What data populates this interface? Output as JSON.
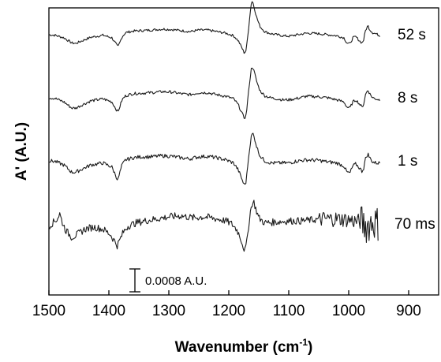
{
  "chart_data": {
    "type": "line",
    "title": "",
    "xlabel_main": "Wavenumber (cm",
    "xlabel_sup": "-1",
    "xlabel_close": ")",
    "ylabel": "A' (A.U.)",
    "xlim": [
      1500,
      850
    ],
    "x_reversed": true,
    "y_ticks_shown": false,
    "xticks": [
      "1500",
      "1400",
      "1300",
      "1200",
      "1100",
      "1000",
      "900"
    ],
    "xtick_values": [
      1500,
      1400,
      1300,
      1200,
      1100,
      1000,
      900
    ],
    "scale_bar": {
      "label": "0.0008 A.U.",
      "value": 0.0008
    },
    "series": [
      {
        "name": "52 s",
        "offset": 3.0,
        "noise": 0.012,
        "x": [
          1500,
          1490,
          1475,
          1462,
          1455,
          1445,
          1430,
          1410,
          1395,
          1388,
          1385,
          1382,
          1378,
          1372,
          1360,
          1345,
          1330,
          1310,
          1295,
          1280,
          1265,
          1250,
          1235,
          1220,
          1205,
          1192,
          1184,
          1178,
          1174,
          1171,
          1168,
          1165,
          1162,
          1160,
          1157,
          1153,
          1148,
          1140,
          1130,
          1120,
          1110,
          1100,
          1085,
          1070,
          1050,
          1035,
          1020,
          1008,
          1003,
          998,
          993,
          988,
          982,
          978,
          975,
          972,
          968,
          965,
          960,
          955,
          948
        ],
        "y": [
          0.0,
          -0.005,
          -0.03,
          -0.08,
          -0.085,
          -0.06,
          -0.025,
          -0.005,
          -0.03,
          -0.09,
          -0.12,
          -0.08,
          -0.02,
          0.02,
          0.035,
          0.04,
          0.045,
          0.055,
          0.05,
          0.04,
          0.03,
          0.045,
          0.045,
          0.03,
          0.015,
          -0.01,
          -0.06,
          -0.13,
          -0.18,
          -0.15,
          0.0,
          0.18,
          0.33,
          0.32,
          0.25,
          0.16,
          0.08,
          0.03,
          0.01,
          0.0,
          -0.01,
          -0.015,
          0.0,
          0.015,
          0.01,
          0.0,
          -0.01,
          -0.03,
          -0.08,
          -0.09,
          -0.03,
          -0.02,
          -0.06,
          -0.08,
          -0.05,
          0.04,
          0.09,
          0.05,
          0.02,
          0.01,
          -0.01
        ]
      },
      {
        "name": "8 s",
        "offset": 2.0,
        "noise": 0.014,
        "x": [
          1500,
          1490,
          1475,
          1462,
          1455,
          1445,
          1430,
          1410,
          1395,
          1388,
          1385,
          1382,
          1378,
          1372,
          1360,
          1345,
          1330,
          1310,
          1295,
          1280,
          1265,
          1250,
          1235,
          1220,
          1205,
          1192,
          1184,
          1178,
          1174,
          1171,
          1168,
          1165,
          1162,
          1160,
          1157,
          1153,
          1148,
          1140,
          1130,
          1120,
          1110,
          1100,
          1085,
          1070,
          1050,
          1035,
          1020,
          1008,
          1003,
          998,
          993,
          988,
          982,
          978,
          975,
          972,
          968,
          965,
          960,
          955,
          948
        ],
        "y": [
          0.0,
          -0.005,
          -0.04,
          -0.1,
          -0.1,
          -0.07,
          -0.03,
          -0.01,
          -0.04,
          -0.11,
          -0.14,
          -0.09,
          -0.02,
          0.02,
          0.04,
          0.045,
          0.05,
          0.06,
          0.055,
          0.04,
          0.03,
          0.05,
          0.05,
          0.03,
          0.015,
          -0.01,
          -0.07,
          -0.15,
          -0.2,
          -0.17,
          0.0,
          0.17,
          0.3,
          0.3,
          0.24,
          0.15,
          0.07,
          0.02,
          0.0,
          -0.01,
          -0.02,
          -0.02,
          -0.005,
          0.015,
          0.01,
          0.0,
          -0.02,
          -0.04,
          -0.09,
          -0.1,
          -0.04,
          -0.02,
          -0.06,
          -0.09,
          -0.06,
          0.03,
          0.08,
          0.04,
          0.0,
          -0.01,
          -0.02
        ]
      },
      {
        "name": "1 s",
        "offset": 1.0,
        "noise": 0.018,
        "x": [
          1500,
          1490,
          1475,
          1462,
          1455,
          1445,
          1430,
          1410,
          1395,
          1388,
          1385,
          1382,
          1378,
          1372,
          1360,
          1345,
          1330,
          1310,
          1295,
          1280,
          1265,
          1250,
          1235,
          1220,
          1205,
          1192,
          1184,
          1178,
          1174,
          1171,
          1168,
          1165,
          1162,
          1160,
          1157,
          1153,
          1148,
          1140,
          1130,
          1120,
          1110,
          1100,
          1085,
          1070,
          1050,
          1035,
          1020,
          1008,
          1003,
          998,
          993,
          988,
          982,
          978,
          975,
          972,
          968,
          965,
          960,
          955,
          948
        ],
        "y": [
          0.0,
          -0.005,
          -0.04,
          -0.11,
          -0.11,
          -0.08,
          -0.04,
          -0.02,
          -0.06,
          -0.15,
          -0.19,
          -0.12,
          -0.04,
          0.01,
          0.03,
          0.04,
          0.04,
          0.05,
          0.045,
          0.03,
          0.02,
          0.04,
          0.045,
          0.03,
          0.01,
          -0.02,
          -0.09,
          -0.18,
          -0.24,
          -0.2,
          -0.02,
          0.14,
          0.25,
          0.27,
          0.22,
          0.13,
          0.05,
          0.0,
          -0.02,
          -0.02,
          -0.02,
          -0.02,
          0.0,
          0.01,
          0.005,
          -0.01,
          -0.02,
          -0.05,
          -0.11,
          -0.12,
          -0.05,
          -0.03,
          -0.07,
          -0.1,
          -0.07,
          0.02,
          0.07,
          0.03,
          -0.01,
          -0.02,
          -0.02
        ]
      },
      {
        "name": "70 ms",
        "offset": 0.0,
        "noise": 0.035,
        "x": [
          1500,
          1492,
          1486,
          1482,
          1478,
          1472,
          1462,
          1452,
          1440,
          1425,
          1410,
          1398,
          1390,
          1386,
          1382,
          1376,
          1368,
          1355,
          1340,
          1320,
          1300,
          1280,
          1260,
          1240,
          1220,
          1205,
          1195,
          1186,
          1180,
          1176,
          1173,
          1170,
          1167,
          1164,
          1161,
          1158,
          1155,
          1150,
          1140,
          1120,
          1100,
          1080,
          1060,
          1040,
          1020,
          1000,
          990,
          980,
          975,
          970,
          965,
          960,
          955,
          950
        ],
        "y": [
          -0.02,
          0.02,
          0.05,
          0.1,
          0.02,
          -0.06,
          -0.13,
          -0.1,
          -0.05,
          -0.03,
          -0.05,
          -0.1,
          -0.17,
          -0.21,
          -0.16,
          -0.08,
          -0.02,
          0.01,
          0.03,
          0.05,
          0.07,
          0.08,
          0.06,
          0.07,
          0.05,
          0.03,
          0.0,
          -0.06,
          -0.14,
          -0.22,
          -0.26,
          -0.18,
          -0.02,
          0.12,
          0.2,
          0.21,
          0.15,
          0.06,
          0.01,
          0.02,
          0.03,
          0.03,
          0.04,
          0.05,
          0.05,
          0.04,
          0.03,
          0.02,
          0.0,
          -0.02,
          0.0,
          0.03,
          0.01,
          0.0
        ]
      }
    ]
  }
}
